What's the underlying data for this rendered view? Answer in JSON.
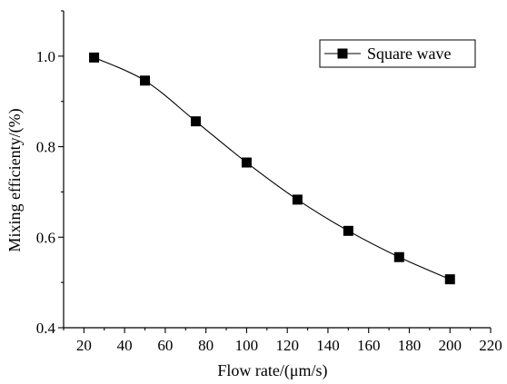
{
  "chart_data": {
    "type": "line",
    "title": "",
    "xlabel": "Flow rate/(μm/s)",
    "ylabel": "Mixing efficienty/(%)",
    "xlim": [
      10,
      220
    ],
    "ylim": [
      0.4,
      1.1
    ],
    "x_ticks": [
      20,
      40,
      60,
      80,
      100,
      120,
      140,
      160,
      180,
      200,
      220
    ],
    "y_ticks": [
      0.4,
      0.6,
      0.8,
      1.0
    ],
    "y_tick_labels": [
      "0.4",
      "0.6",
      "0.8",
      "1.0"
    ],
    "legend_position": "top-right",
    "grid": false,
    "series": [
      {
        "name": "Square wave",
        "marker": "square",
        "color": "#000000",
        "x": [
          25,
          50,
          75,
          100,
          125,
          150,
          175,
          200
        ],
        "values": [
          0.997,
          0.946,
          0.856,
          0.765,
          0.683,
          0.614,
          0.556,
          0.507
        ]
      }
    ]
  }
}
